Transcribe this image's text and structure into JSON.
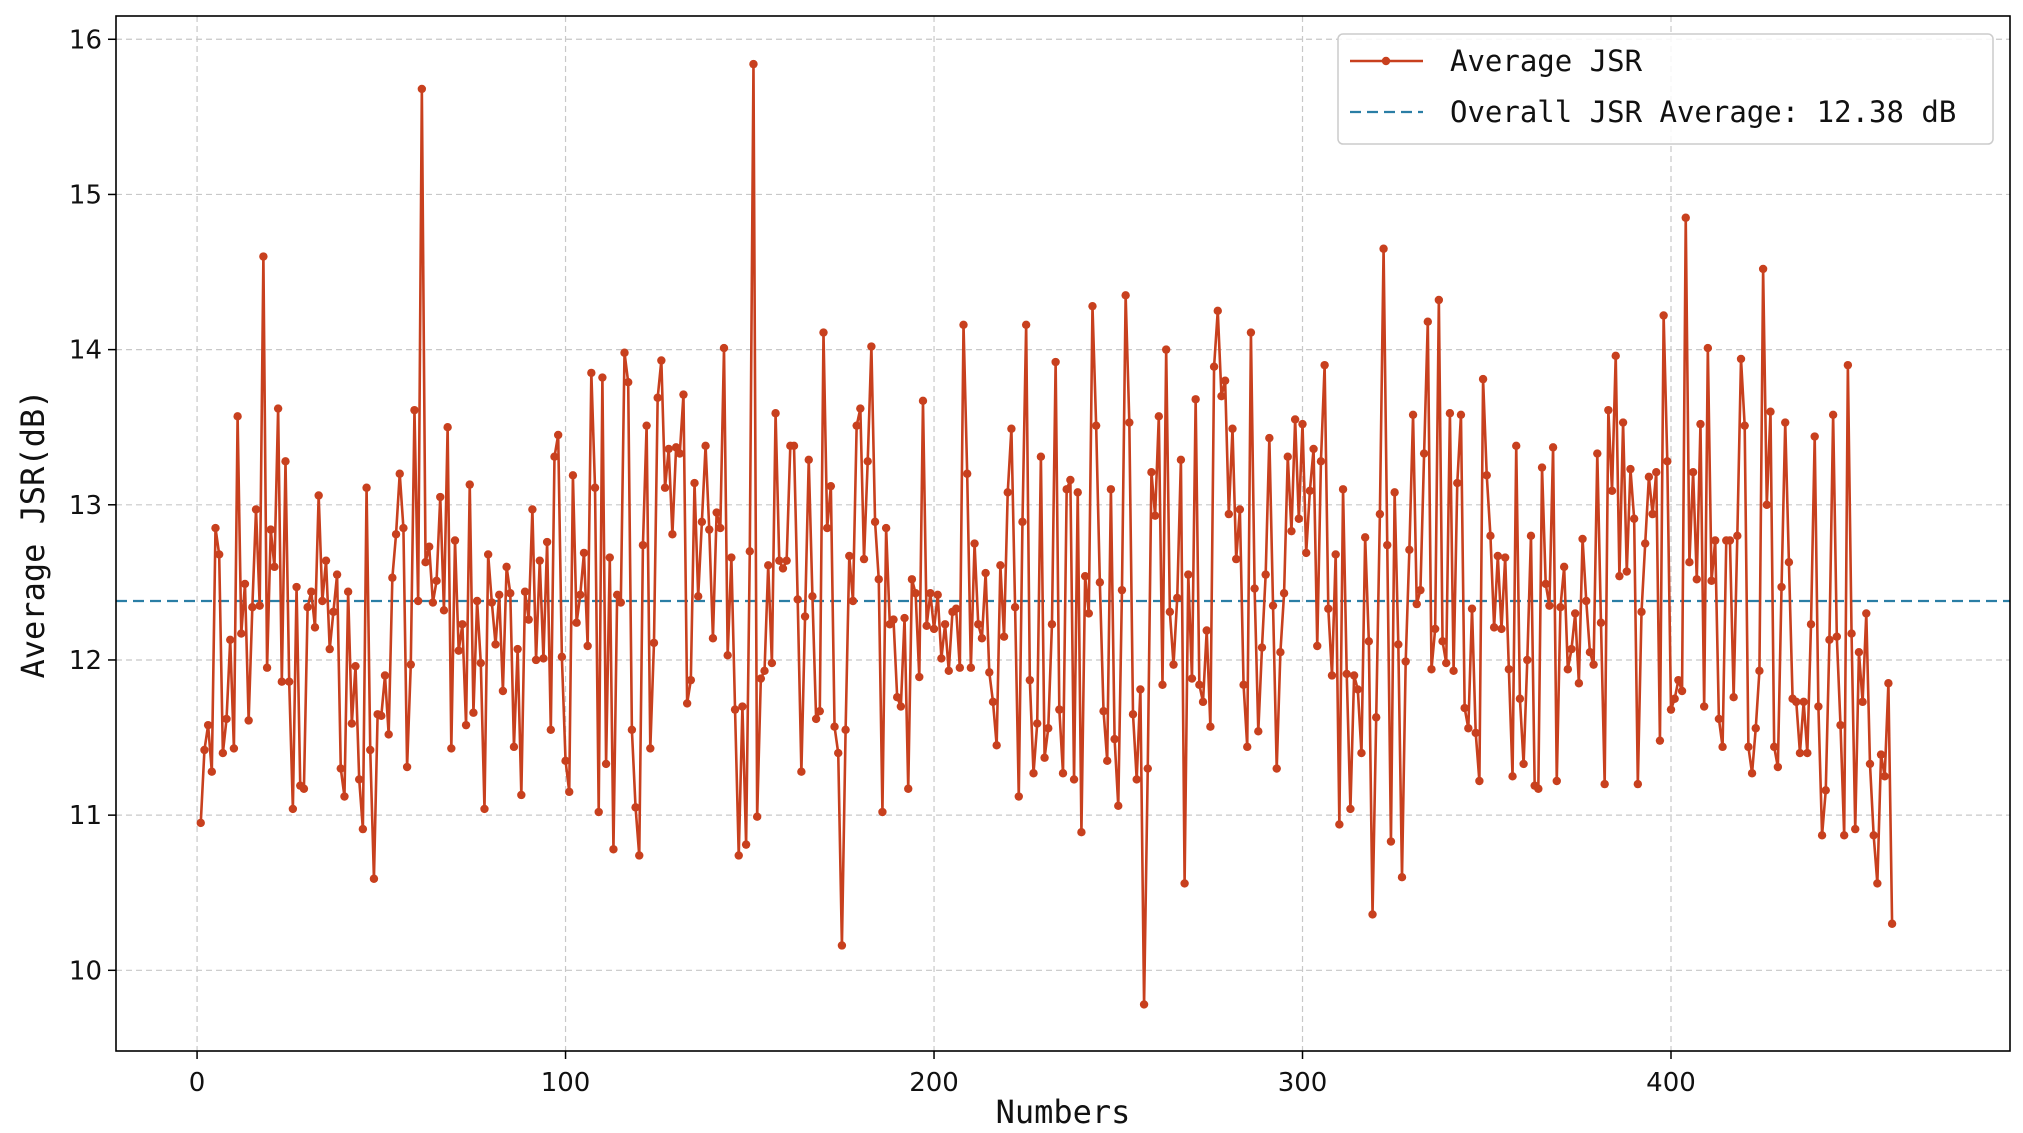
{
  "chart_data": {
    "type": "line",
    "title": "",
    "xlabel": "Numbers",
    "ylabel": "Average JSR(dB)",
    "xlim": [
      -22,
      492
    ],
    "ylim": [
      9.48,
      16.15
    ],
    "xticks": [
      0,
      100,
      200,
      300,
      400
    ],
    "yticks": [
      10,
      11,
      12,
      13,
      14,
      15,
      16
    ],
    "xtick_labels": [
      "0",
      "100",
      "200",
      "300",
      "400"
    ],
    "ytick_labels": [
      "10",
      "11",
      "12",
      "13",
      "14",
      "15",
      "16"
    ],
    "grid": true,
    "legend_position": "top-right",
    "series": [
      {
        "name": "Average JSR",
        "color": "#c8401e",
        "marker": "circle",
        "x_start": 1,
        "values": [
          10.95,
          11.42,
          11.58,
          11.28,
          12.85,
          12.68,
          11.4,
          11.62,
          12.13,
          11.43,
          13.57,
          12.17,
          12.49,
          11.61,
          12.34,
          12.97,
          12.35,
          14.6,
          11.95,
          12.84,
          12.6,
          13.62,
          11.86,
          13.28,
          11.86,
          11.04,
          12.47,
          11.19,
          11.17,
          12.34,
          12.44,
          12.21,
          13.06,
          12.38,
          12.64,
          12.07,
          12.31,
          12.55,
          11.3,
          11.12,
          12.44,
          11.59,
          11.96,
          11.23,
          10.91,
          13.11,
          11.42,
          10.59,
          11.65,
          11.64,
          11.9,
          11.52,
          12.53,
          12.81,
          13.2,
          12.85,
          11.31,
          11.97,
          13.61,
          12.38,
          15.68,
          12.63,
          12.73,
          12.37,
          12.51,
          13.05,
          12.32,
          13.5,
          11.43,
          12.77,
          12.06,
          12.23,
          11.58,
          13.13,
          11.66,
          12.38,
          11.98,
          11.04,
          12.68,
          12.37,
          12.1,
          12.42,
          11.8,
          12.6,
          12.43,
          11.44,
          12.07,
          11.13,
          12.44,
          12.26,
          12.97,
          12.0,
          12.64,
          12.01,
          12.76,
          11.55,
          13.31,
          13.45,
          12.02,
          11.35,
          11.15,
          13.19,
          12.24,
          12.42,
          12.69,
          12.09,
          13.85,
          13.11,
          11.02,
          13.82,
          11.33,
          12.66,
          10.78,
          12.42,
          12.37,
          13.98,
          13.79,
          11.55,
          11.05,
          10.74,
          12.74,
          13.51,
          11.43,
          12.11,
          13.69,
          13.93,
          13.11,
          13.36,
          12.81,
          13.37,
          13.33,
          13.71,
          11.72,
          11.87,
          13.14,
          12.41,
          12.89,
          13.38,
          12.84,
          12.14,
          12.95,
          12.85,
          14.01,
          12.03,
          12.66,
          11.68,
          10.74,
          11.7,
          10.81,
          12.7,
          15.84,
          10.99,
          11.88,
          11.93,
          12.61,
          11.98,
          13.59,
          12.64,
          12.59,
          12.64,
          13.38,
          13.38,
          12.39,
          11.28,
          12.28,
          13.29,
          12.41,
          11.62,
          11.67,
          14.11,
          12.85,
          13.12,
          11.57,
          11.4,
          10.16,
          11.55,
          12.67,
          12.38,
          13.51,
          13.62,
          12.65,
          13.28,
          14.02,
          12.89,
          12.52,
          11.02,
          12.85,
          12.23,
          12.26,
          11.76,
          11.7,
          12.27,
          11.17,
          12.52,
          12.43,
          11.89,
          13.67,
          12.22,
          12.43,
          12.2,
          12.42,
          12.01,
          12.23,
          11.93,
          12.31,
          12.33,
          11.95,
          14.16,
          13.2,
          11.95,
          12.75,
          12.23,
          12.14,
          12.56,
          11.92,
          11.73,
          11.45,
          12.61,
          12.15,
          13.08,
          13.49,
          12.34,
          11.12,
          12.89,
          14.16,
          11.87,
          11.27,
          11.59,
          13.31,
          11.37,
          11.56,
          12.23,
          13.92,
          11.68,
          11.27,
          13.1,
          13.16,
          11.23,
          13.08,
          10.89,
          12.54,
          12.3,
          14.28,
          13.51,
          12.5,
          11.67,
          11.35,
          13.1,
          11.49,
          11.06,
          12.45,
          14.35,
          13.53,
          11.65,
          11.23,
          11.81,
          9.78,
          11.3,
          13.21,
          12.93,
          13.57,
          11.84,
          14.0,
          12.31,
          11.97,
          12.4,
          13.29,
          10.56,
          12.55,
          11.88,
          13.68,
          11.84,
          11.73,
          12.19,
          11.57,
          13.89,
          14.25,
          13.7,
          13.8,
          12.94,
          13.49,
          12.65,
          12.97,
          11.84,
          11.44,
          14.11,
          12.46,
          11.54,
          12.08,
          12.55,
          13.43,
          12.35,
          11.3,
          12.05,
          12.43,
          13.31,
          12.83,
          13.55,
          12.91,
          13.52,
          12.69,
          13.09,
          13.36,
          12.09,
          13.28,
          13.9,
          12.33,
          11.9,
          12.68,
          10.94,
          13.1,
          11.91,
          11.04,
          11.9,
          11.81,
          11.4,
          12.79,
          12.12,
          10.36,
          11.63,
          12.94,
          14.65,
          12.74,
          10.83,
          13.08,
          12.1,
          10.6,
          11.99,
          12.71,
          13.58,
          12.36,
          12.45,
          13.33,
          14.18,
          11.94,
          12.2,
          14.32,
          12.12,
          11.98,
          13.59,
          11.93,
          13.14,
          13.58,
          11.69,
          11.56,
          12.33,
          11.53,
          11.22,
          13.81,
          13.19,
          12.8,
          12.21,
          12.67,
          12.2,
          12.66,
          11.94,
          11.25,
          13.38,
          11.75,
          11.33,
          12.0,
          12.8,
          11.19,
          11.17,
          13.24,
          12.49,
          12.35,
          13.37,
          11.22,
          12.34,
          12.6,
          11.94,
          12.07,
          12.3,
          11.85,
          12.78,
          12.38,
          12.05,
          11.97,
          13.33,
          12.24,
          11.2,
          13.61,
          13.09,
          13.96,
          12.54,
          13.53,
          12.57,
          13.23,
          12.91,
          11.2,
          12.31,
          12.75,
          13.18,
          12.94,
          13.21,
          11.48,
          14.22,
          13.28,
          11.68,
          11.75,
          11.87,
          11.8,
          14.85,
          12.63,
          13.21,
          12.52,
          13.52,
          11.7,
          14.01,
          12.51,
          12.77,
          11.62,
          11.44,
          12.77,
          12.77,
          11.76,
          12.8,
          13.94,
          13.51,
          11.44,
          11.27,
          11.56,
          11.93,
          14.52,
          13.0,
          13.6,
          11.44,
          11.31,
          12.47,
          13.53,
          12.63,
          11.75,
          11.73,
          11.4,
          11.73,
          11.4,
          12.23,
          13.44,
          11.7,
          10.87,
          11.16,
          12.13,
          13.58,
          12.15,
          11.58,
          10.87,
          13.9,
          12.17,
          10.91,
          12.05,
          11.73,
          12.3,
          11.33,
          10.87,
          10.56,
          11.39,
          11.25,
          11.85,
          10.3
        ]
      },
      {
        "name": "Overall JSR Average: 12.38 dB",
        "color": "#2a7ea5",
        "style": "dashed",
        "constant": 12.38
      }
    ]
  }
}
